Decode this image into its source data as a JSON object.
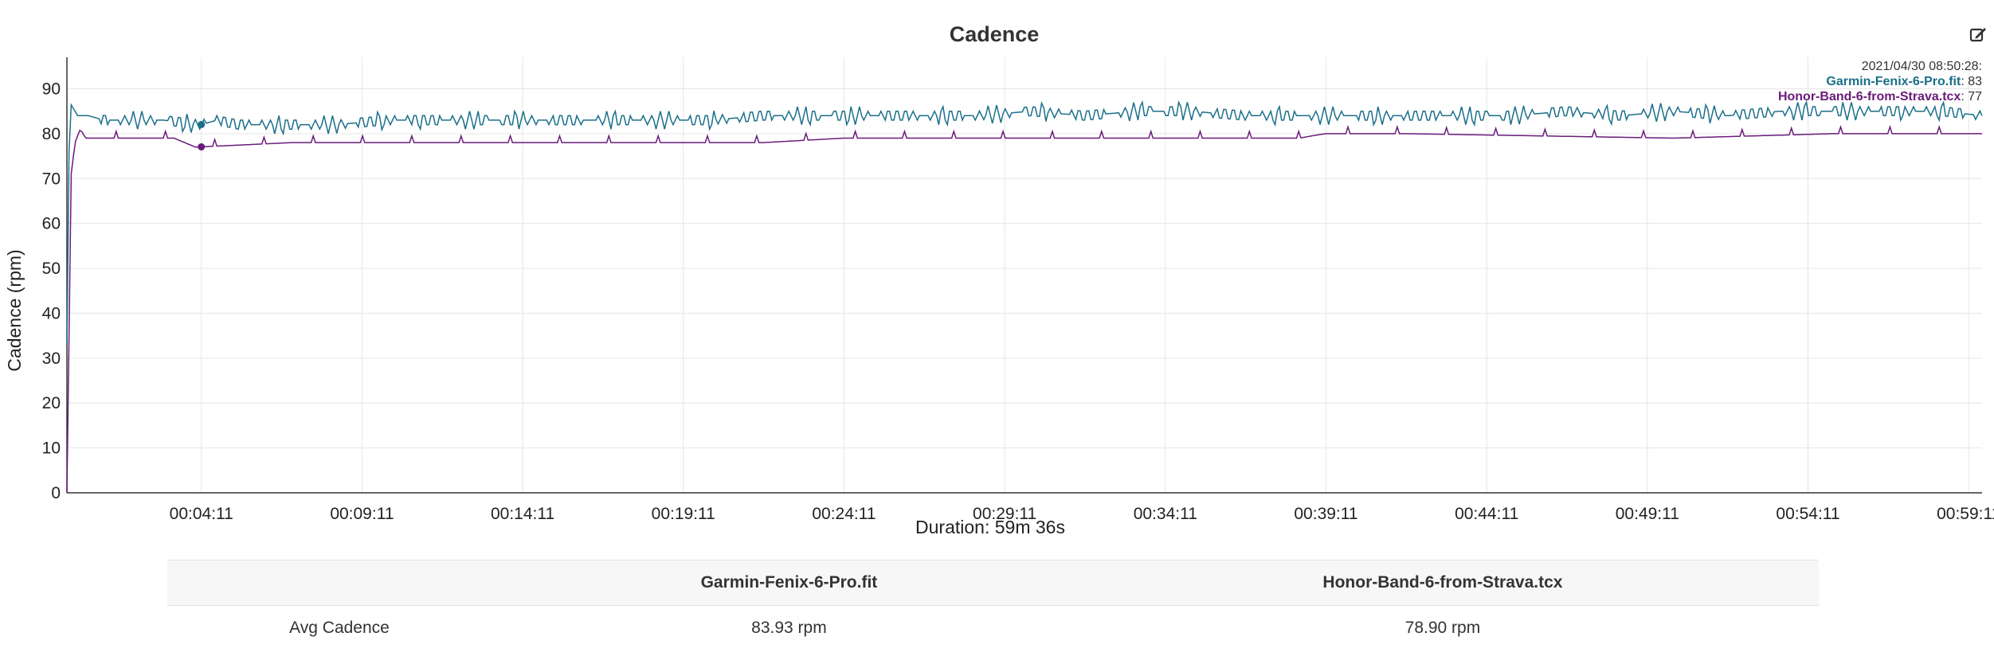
{
  "chart_data": {
    "type": "line",
    "title": "Cadence",
    "ylabel": "Cadence (rpm)",
    "xlabel": "Duration: 59m 36s",
    "ylim": [
      0,
      97
    ],
    "y_ticks": [
      0,
      10,
      20,
      30,
      40,
      50,
      60,
      70,
      80,
      90
    ],
    "x_ticks": [
      "00:04:11",
      "00:09:11",
      "00:14:11",
      "00:19:11",
      "00:24:11",
      "00:29:11",
      "00:34:11",
      "00:39:11",
      "00:44:11",
      "00:49:11",
      "00:54:11",
      "00:59:11"
    ],
    "x_tick_seconds": [
      251,
      551,
      851,
      1151,
      1451,
      1751,
      2051,
      2351,
      2651,
      2951,
      3251,
      3551
    ],
    "duration_seconds": 3576,
    "grid": true,
    "series": [
      {
        "name": "Garmin-Fenix-6-Pro.fit",
        "color": "#1b6f8a",
        "x": [
          0,
          5,
          10,
          20,
          40,
          70,
          120,
          180,
          250,
          280,
          320,
          400,
          500,
          600,
          700,
          800,
          900,
          1000,
          1100,
          1200,
          1300,
          1400,
          1500,
          1600,
          1700,
          1800,
          1900,
          2000,
          2100,
          2200,
          2300,
          2400,
          2500,
          2600,
          2700,
          2800,
          2900,
          3000,
          3100,
          3200,
          3300,
          3400,
          3500,
          3576
        ],
        "y": [
          33,
          87,
          86,
          84,
          84,
          83,
          83,
          83,
          82,
          83,
          82,
          82,
          82,
          83,
          83,
          83,
          83,
          83,
          83,
          83,
          84,
          84,
          84,
          84,
          84,
          85,
          84,
          85,
          85,
          84,
          84,
          84,
          84,
          84,
          84,
          85,
          84,
          85,
          84,
          85,
          85,
          85,
          85,
          84
        ]
      },
      {
        "name": "Honor-Band-6-from-Strava.tcx",
        "color": "#6a1b7a",
        "x": [
          0,
          8,
          15,
          25,
          35,
          60,
          200,
          240,
          420,
          1300,
          1450,
          1460,
          2200,
          2300,
          2350,
          2500,
          3000,
          3300,
          3576
        ],
        "y": [
          0,
          71,
          78,
          81,
          79,
          79,
          79,
          77,
          78,
          78,
          79,
          79,
          79,
          79,
          80,
          80,
          79,
          80,
          80
        ]
      }
    ],
    "legend": {
      "placement": "top-right",
      "timestamp": "2021/04/30 08:50:28:",
      "entries": [
        {
          "name": "Garmin-Fenix-6-Pro.fit",
          "value": ": 83",
          "color": "#1b6f8a"
        },
        {
          "name": "Honor-Band-6-from-Strava.tcx",
          "value": ": 77",
          "color": "#6a1b7a"
        }
      ]
    },
    "hover_seconds": 251
  },
  "table": {
    "headers": [
      "",
      "Garmin-Fenix-6-Pro.fit",
      "Honor-Band-6-from-Strava.tcx"
    ],
    "rows": [
      {
        "label": "Avg Cadence",
        "values": [
          "83.93 rpm",
          "78.90 rpm"
        ]
      }
    ]
  },
  "toolbar": {
    "edit_icon": "edit-icon"
  }
}
